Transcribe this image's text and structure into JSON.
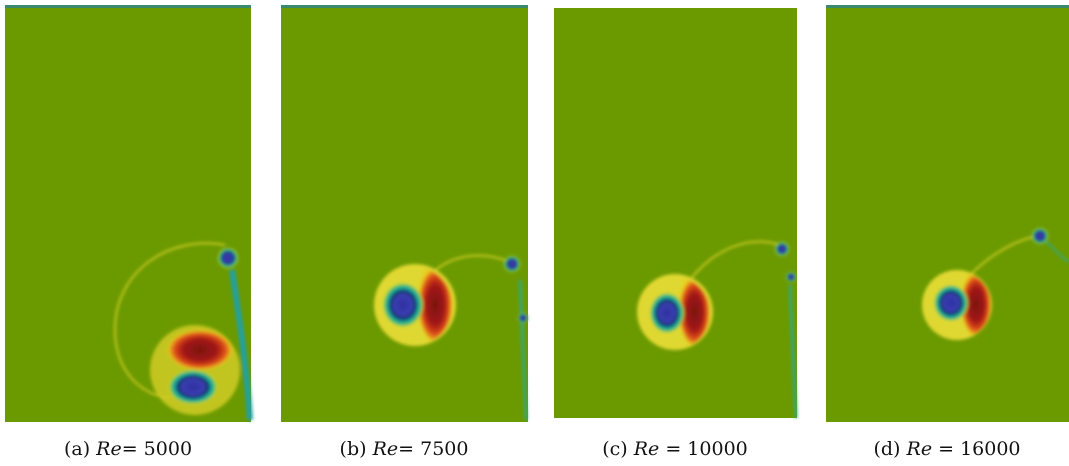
{
  "captions": [
    {
      "tag": "(a)",
      "symbol": "Re",
      "rest": "= 5000"
    },
    {
      "tag": "(b)",
      "symbol": "Re",
      "rest": "= 7500"
    },
    {
      "tag": "(c)",
      "symbol": "Re",
      "rest": " = 10000"
    },
    {
      "tag": "(d)",
      "symbol": "Re",
      "rest": " = 16000"
    }
  ]
}
